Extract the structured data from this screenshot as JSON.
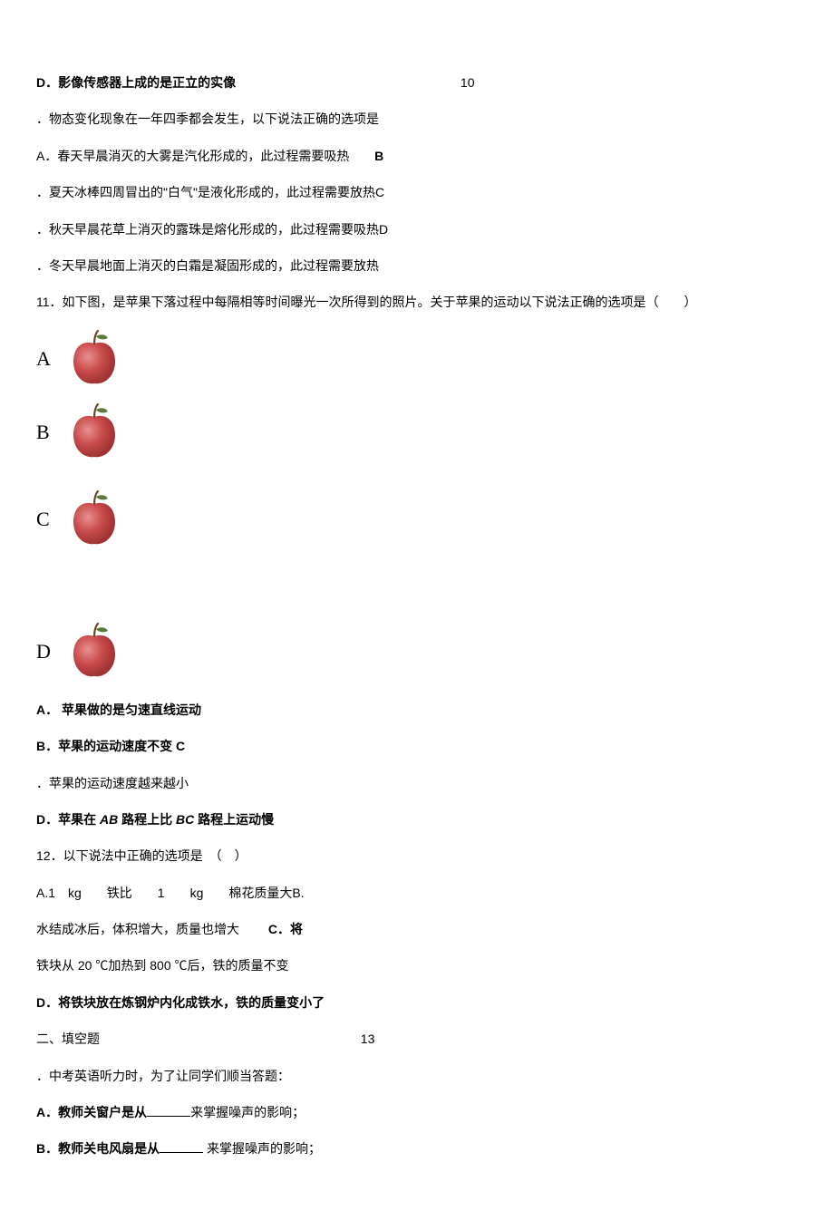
{
  "q9_D": "D．影像传感器上成的是正立的实像",
  "q9_D_num": "10",
  "q10_stem": "．物态变化现象在一年四季都会发生，以下说法正确的选项是",
  "q10_A": "A．春天早晨消灭的大雾是汽化形成的，此过程需要吸热",
  "q10_A_tail": "B",
  "q10_B": "．夏天冰棒四周冒出的\"白气\"是液化形成的，此过程需要放热C",
  "q10_C": "．秋天早晨花草上消灭的露珠是熔化形成的，此过程需要吸热D",
  "q10_D": "．冬天早晨地面上消灭的白霜是凝固形成的，此过程需要放热",
  "q11_stem": "11．如下图，是苹果下落过程中每隔相等时间曝光一次所得到的照片。关于苹果的运动以下说法正确的选项是（　　）",
  "apples": {
    "labels": [
      "A",
      "B",
      "C",
      "D"
    ],
    "body_color": "#c94a4a",
    "body_shadow": "#9e3434",
    "highlight": "#e89090",
    "stem_color": "#6b4a2a",
    "leaf_color": "#5a7a3a"
  },
  "q11_A": "A． 苹果做的是匀速直线运动",
  "q11_B_pre": "B．苹果的运动速度不变  ",
  "q11_B_tail": "C",
  "q11_C": "．苹果的运动速度越来越小",
  "q11_D_pre": "D．苹果在 ",
  "q11_D_ab": "AB",
  "q11_D_mid": " 路程上比 ",
  "q11_D_bc": "BC",
  "q11_D_post": " 路程上运动慢",
  "q12_stem": "12．以下说法中正确的选项是　（　）",
  "q12_A": "A.1　kg　　铁比　　1　　kg　　棉花质量大B.",
  "q12_B_pre": "水结成冰后，体积增大，质量也增大　　 ",
  "q12_B_tail": "C．将",
  "q12_C": "铁块从 20 ℃加热到 800 ℃后，铁的质量不变",
  "q12_D": "D．将铁块放在炼钢炉内化成铁水，铁的质量变小了",
  "sec2_title": "二、填空题",
  "sec2_num": "13",
  "q13_stem": "．中考英语听力时，为了让同学们顺当答题：",
  "q13_A_pre": "A．教师关窗户是从",
  "q13_A_post": "来掌握噪声的影响；",
  "q13_B_pre": "B．教师关电风扇是从",
  "q13_B_post": " 来掌握噪声的影响；"
}
